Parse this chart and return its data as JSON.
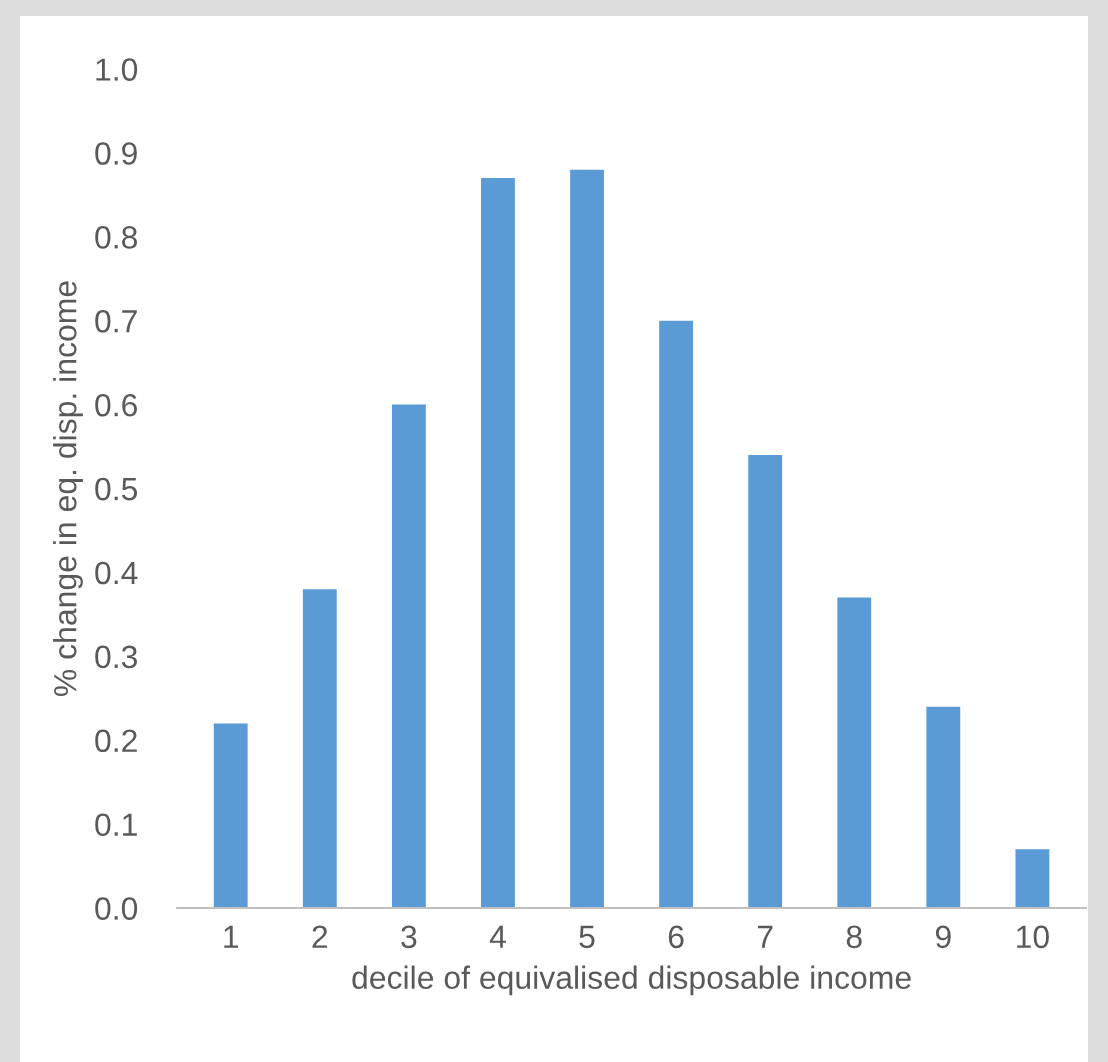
{
  "chart_data": {
    "type": "bar",
    "xlabel": "decile of equivalised disposable income",
    "ylabel": "% change in eq. disp. income",
    "categories": [
      "1",
      "2",
      "3",
      "4",
      "5",
      "6",
      "7",
      "8",
      "9",
      "10"
    ],
    "values": [
      0.22,
      0.38,
      0.6,
      0.87,
      0.88,
      0.7,
      0.54,
      0.37,
      0.24,
      0.07
    ],
    "color": "#5b9bd5",
    "ylim": [
      0,
      1.0
    ],
    "yticks": [
      {
        "value": 0,
        "label": "0.0"
      },
      {
        "value": 0.1,
        "label": "0.1"
      },
      {
        "value": 0.2,
        "label": "0.2"
      },
      {
        "value": 0.3,
        "label": "0.3"
      },
      {
        "value": 0.4,
        "label": "0.4"
      },
      {
        "value": 0.5,
        "label": "0.5"
      },
      {
        "value": 0.6,
        "label": "0.6"
      },
      {
        "value": 0.7,
        "label": "0.7"
      },
      {
        "value": 0.8,
        "label": "0.8"
      },
      {
        "value": 0.9,
        "label": "0.9"
      },
      {
        "value": 1.0,
        "label": "1.0"
      }
    ],
    "grid": false
  }
}
